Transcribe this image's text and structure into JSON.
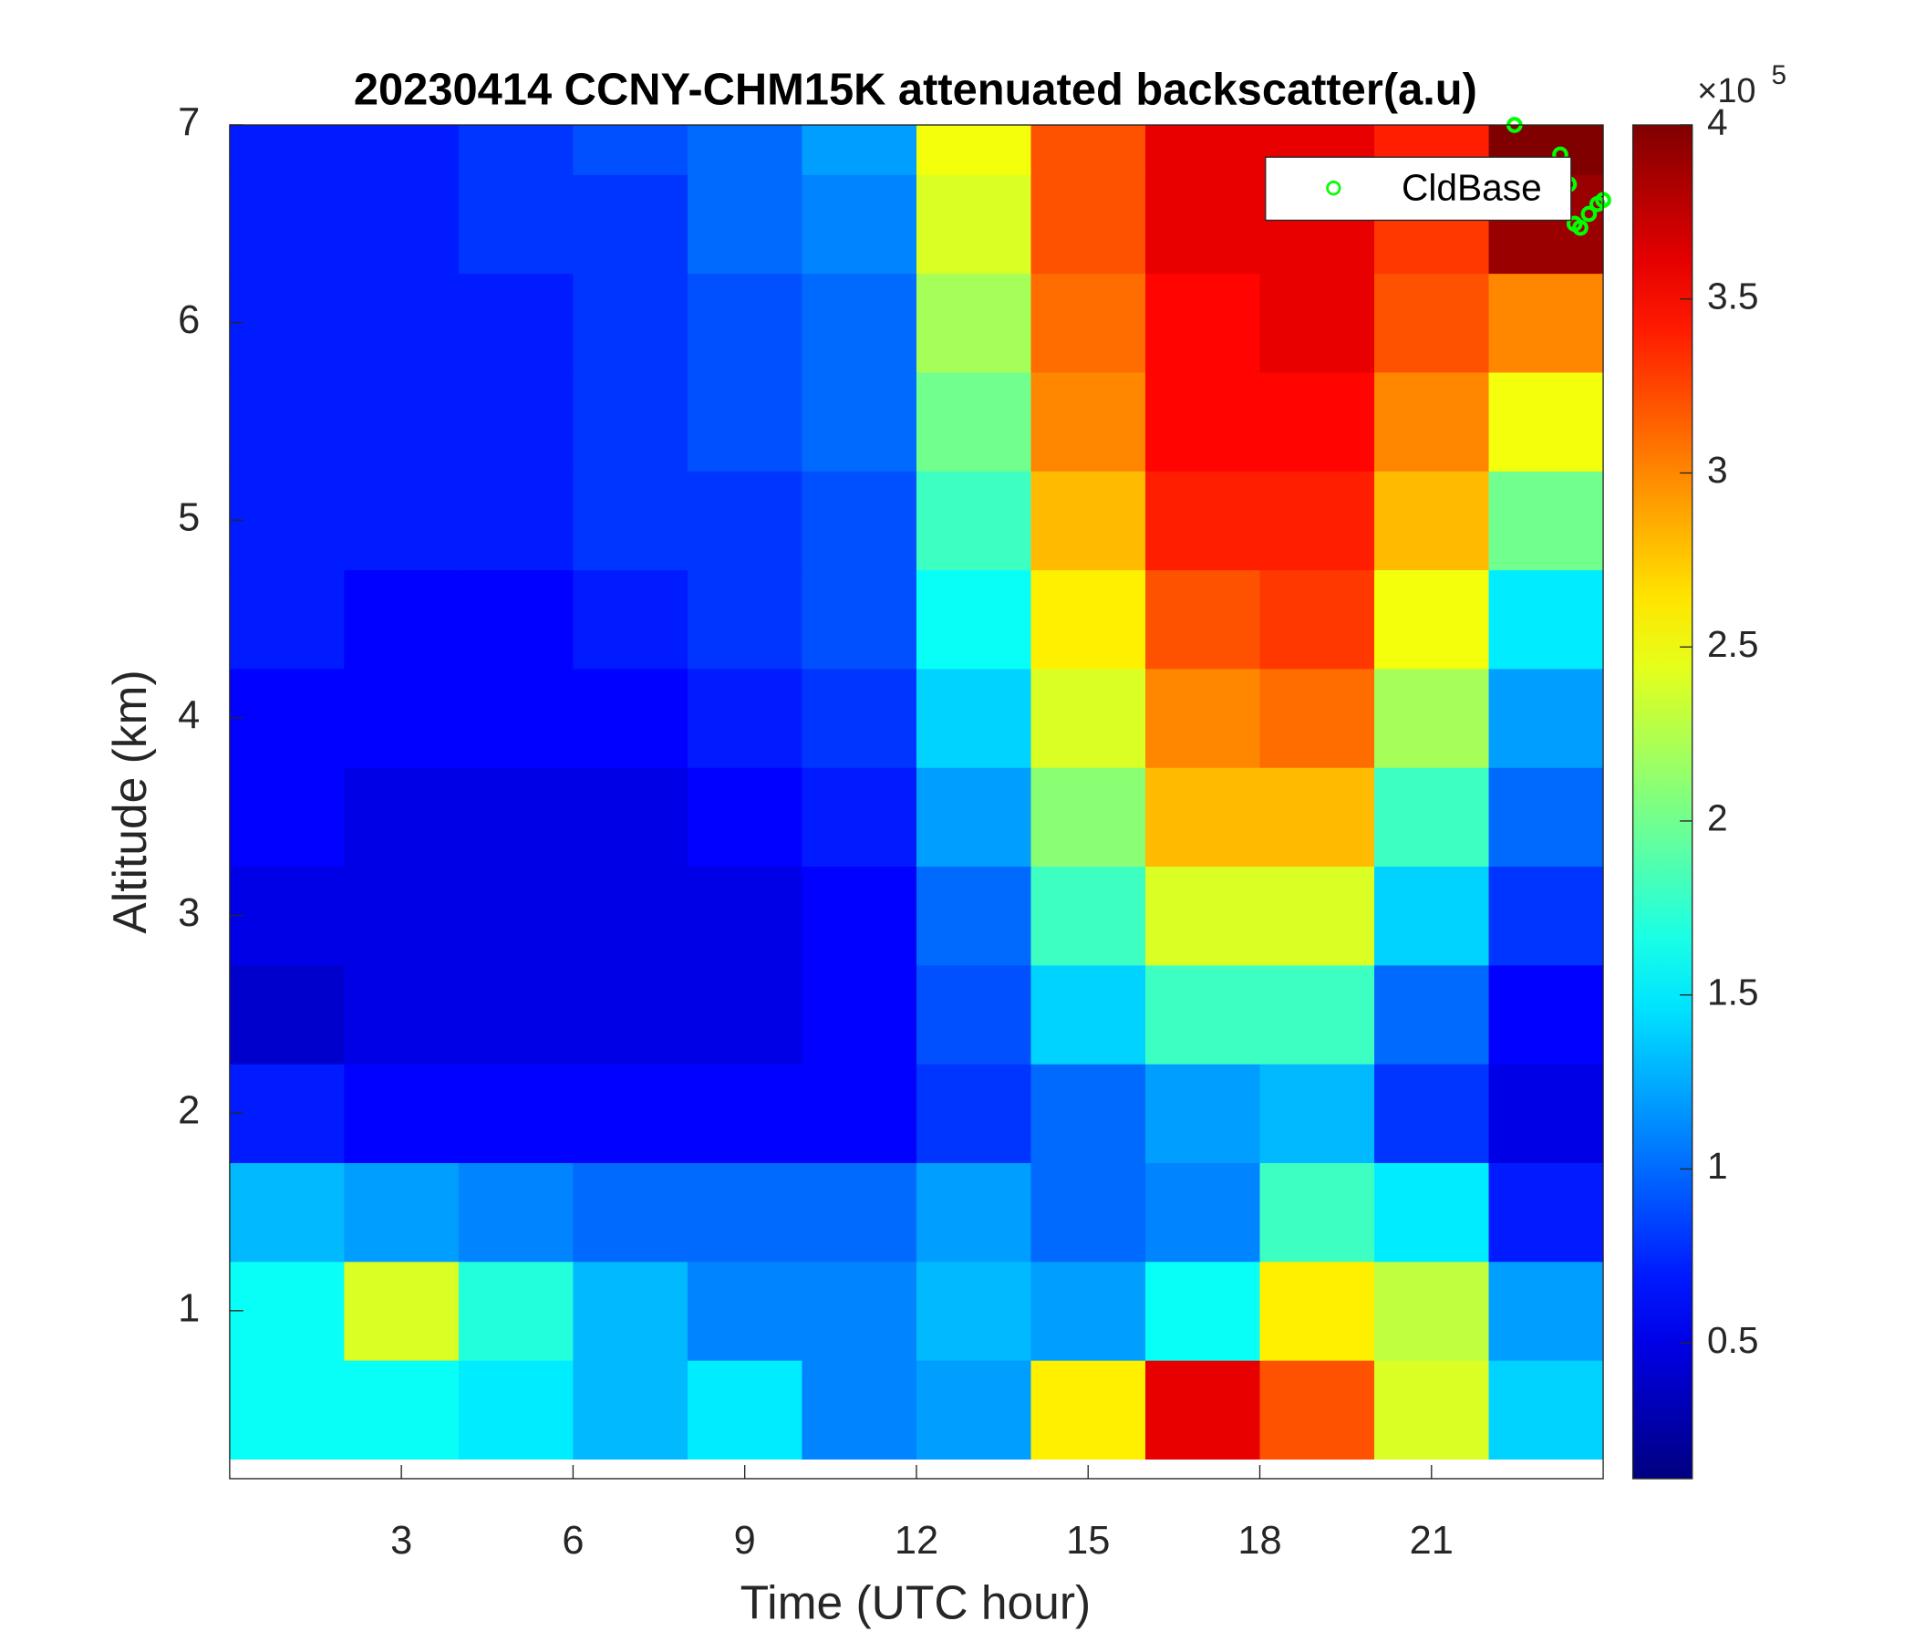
{
  "chart_data": {
    "type": "heatmap",
    "title": "20230414 CCNY-CHM15K attenuated backscatter(a.u)",
    "xlabel": "Time (UTC hour)",
    "ylabel": "Altitude (km)",
    "xlim": [
      0,
      24
    ],
    "xticks": [
      3,
      6,
      9,
      12,
      15,
      18,
      21
    ],
    "ylim": [
      0.15,
      7
    ],
    "yticks": [
      1,
      2,
      3,
      4,
      5,
      6,
      7
    ],
    "colormap": "jet",
    "clim": [
      0.11,
      4
    ],
    "cticks": [
      0.5,
      1,
      1.5,
      2,
      2.5,
      3,
      3.5,
      4
    ],
    "cbar_multiplier": "×10",
    "cbar_exponent": "5",
    "x": [
      1,
      3,
      5,
      7,
      9,
      11,
      13,
      15,
      17,
      19,
      21,
      23
    ],
    "y": [
      0.5,
      1,
      1.5,
      2,
      2.5,
      3,
      3.5,
      4,
      4.5,
      5,
      5.5,
      6,
      6.5,
      7
    ],
    "z": [
      [
        1.6,
        1.6,
        1.5,
        1.3,
        1.5,
        1.1,
        1.2,
        2.6,
        3.6,
        3.2,
        2.4,
        1.4
      ],
      [
        1.6,
        2.4,
        1.7,
        1.3,
        1.1,
        1.1,
        1.3,
        1.2,
        1.6,
        2.6,
        2.3,
        1.2
      ],
      [
        1.3,
        1.2,
        1.1,
        1.0,
        1.0,
        1.0,
        1.2,
        1.0,
        1.1,
        1.8,
        1.5,
        0.7
      ],
      [
        0.7,
        0.6,
        0.6,
        0.6,
        0.6,
        0.6,
        0.8,
        1.0,
        1.2,
        1.3,
        0.8,
        0.5
      ],
      [
        0.4,
        0.5,
        0.5,
        0.5,
        0.5,
        0.6,
        0.9,
        1.4,
        1.8,
        1.8,
        1.0,
        0.6
      ],
      [
        0.5,
        0.5,
        0.5,
        0.5,
        0.5,
        0.6,
        1.0,
        1.8,
        2.4,
        2.4,
        1.4,
        0.8
      ],
      [
        0.6,
        0.5,
        0.5,
        0.5,
        0.6,
        0.7,
        1.2,
        2.1,
        2.8,
        2.8,
        1.8,
        1.0
      ],
      [
        0.6,
        0.6,
        0.6,
        0.6,
        0.7,
        0.8,
        1.4,
        2.4,
        3.0,
        3.1,
        2.2,
        1.2
      ],
      [
        0.7,
        0.6,
        0.6,
        0.7,
        0.8,
        0.9,
        1.6,
        2.6,
        3.2,
        3.3,
        2.5,
        1.5
      ],
      [
        0.7,
        0.7,
        0.7,
        0.8,
        0.8,
        0.9,
        1.8,
        2.8,
        3.4,
        3.4,
        2.8,
        2.0
      ],
      [
        0.7,
        0.7,
        0.7,
        0.8,
        0.9,
        1.0,
        2.0,
        3.0,
        3.5,
        3.5,
        3.0,
        2.5
      ],
      [
        0.7,
        0.7,
        0.7,
        0.8,
        0.9,
        1.0,
        2.2,
        3.1,
        3.5,
        3.6,
        3.2,
        3.0
      ],
      [
        0.7,
        0.7,
        0.8,
        0.8,
        1.0,
        1.1,
        2.4,
        3.2,
        3.6,
        3.6,
        3.3,
        3.9
      ],
      [
        0.7,
        0.7,
        0.8,
        0.9,
        1.0,
        1.2,
        2.5,
        3.2,
        3.6,
        3.6,
        3.4,
        4.0
      ]
    ],
    "overlay": {
      "name": "CldBase",
      "color": "#00ff00",
      "x": [
        22.45,
        23.25,
        23.4,
        23.5,
        23.6,
        23.75,
        23.9,
        24.0
      ],
      "y": [
        7.0,
        6.85,
        6.7,
        6.5,
        6.48,
        6.55,
        6.6,
        6.62
      ]
    }
  }
}
